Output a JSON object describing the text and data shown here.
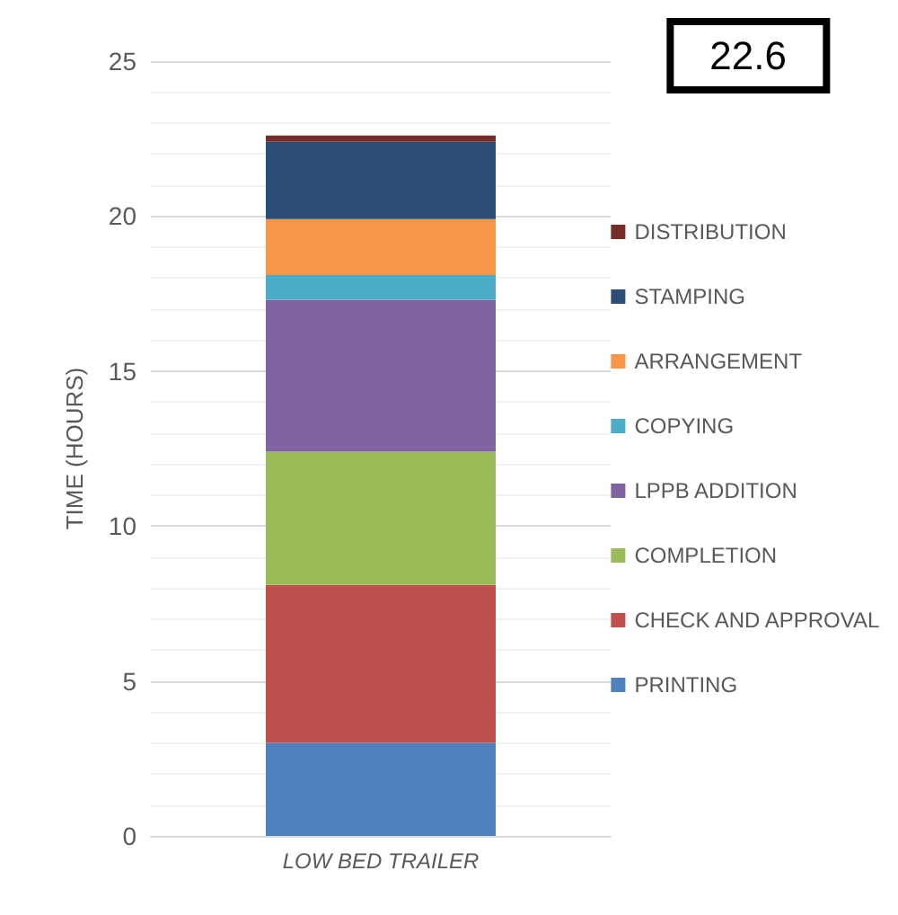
{
  "chart_data": {
    "type": "bar",
    "stacked": true,
    "ylabel": "TIME (HOURS)",
    "categories": [
      "LOW BED TRAILER"
    ],
    "series": [
      {
        "name": "PRINTING",
        "color": "#4f81bd",
        "values": [
          3.0
        ]
      },
      {
        "name": "CHECK AND APPROVAL",
        "color": "#c0504d",
        "values": [
          5.1
        ]
      },
      {
        "name": "COMPLETION",
        "color": "#9bbb59",
        "values": [
          4.3
        ]
      },
      {
        "name": "LPPB ADDITION",
        "color": "#8064a2",
        "values": [
          4.9
        ]
      },
      {
        "name": "COPYING",
        "color": "#4bacc6",
        "values": [
          0.8
        ]
      },
      {
        "name": "ARRANGEMENT",
        "color": "#f79646",
        "values": [
          1.8
        ]
      },
      {
        "name": "STAMPING",
        "color": "#2c4d75",
        "values": [
          2.5
        ]
      },
      {
        "name": "DISTRIBUTION",
        "color": "#772c2a",
        "values": [
          0.2
        ]
      }
    ],
    "annotations": [
      "22.6"
    ],
    "ylim": [
      0,
      25
    ],
    "yticks": [
      0,
      5,
      10,
      15,
      20,
      25
    ],
    "grid": "y",
    "legend": "right"
  }
}
